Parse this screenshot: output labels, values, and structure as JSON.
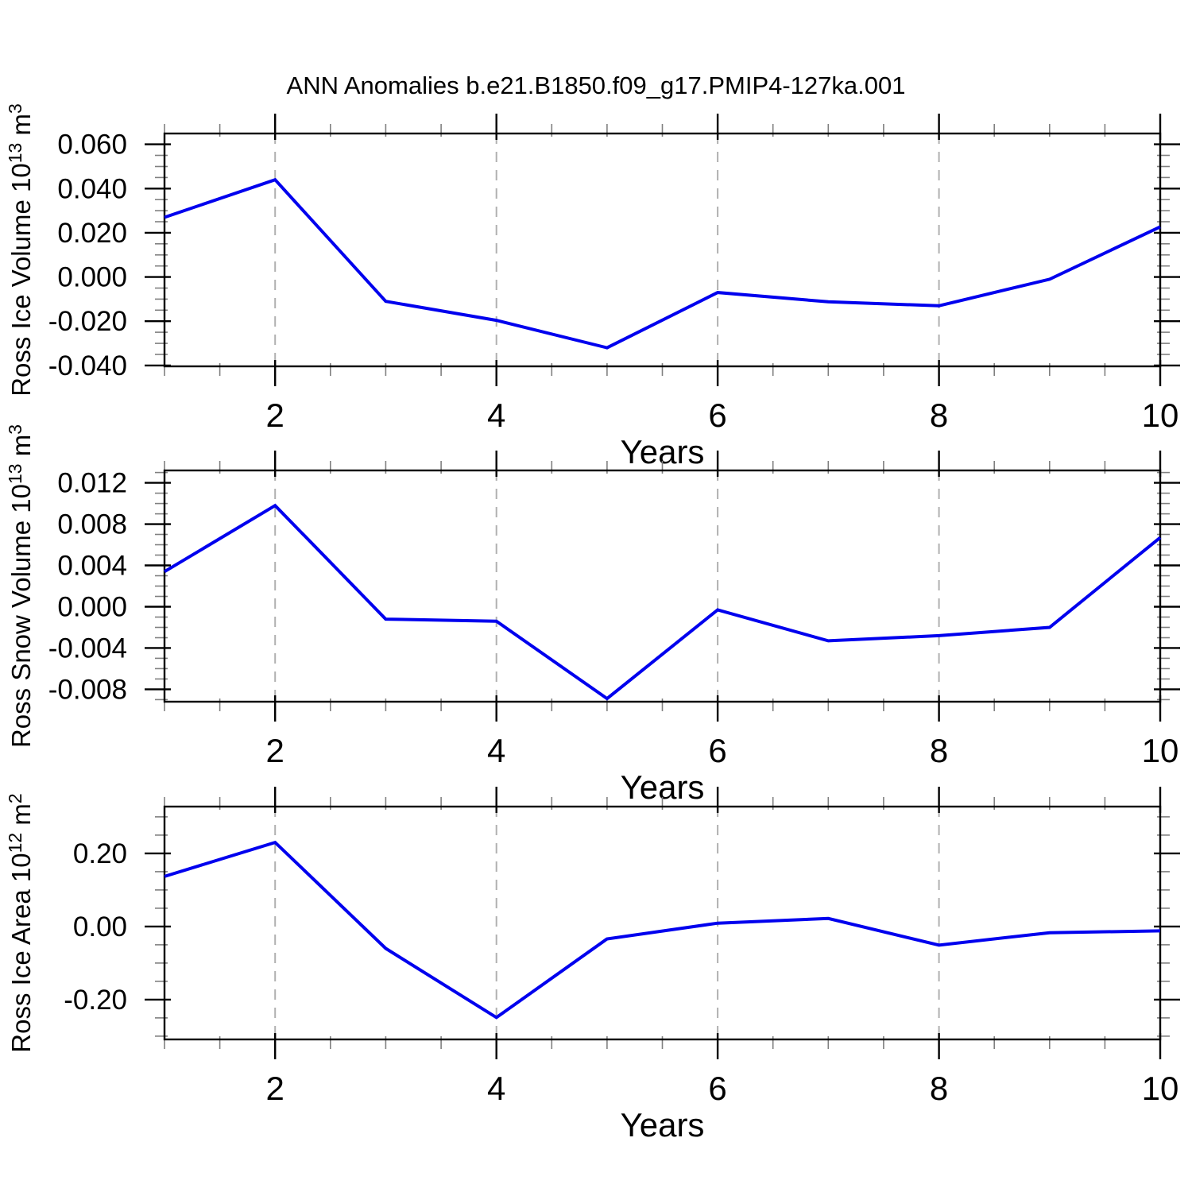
{
  "title": "ANN Anomalies b.e21.B1850.f09_g17.PMIP4-127ka.001",
  "line_color": "#0000ee",
  "colors": {
    "grid": "#b0b0b0",
    "axis": "#000000",
    "minor_tick": "#808080",
    "background": "#ffffff"
  },
  "chart_data": [
    {
      "type": "line",
      "id": "ross-ice-volume",
      "ylabel": "Ross Ice Volume 10^13 m^3",
      "ylabel_parts": [
        {
          "t": "Ross Ice Volume 10"
        },
        {
          "t": "13",
          "sup": true
        },
        {
          "t": " m"
        },
        {
          "t": "3",
          "sup": true
        }
      ],
      "xlabel": "Years",
      "x": [
        1,
        2,
        3,
        4,
        5,
        6,
        7,
        8,
        9,
        10
      ],
      "values": [
        0.027,
        0.044,
        -0.011,
        -0.0196,
        -0.032,
        -0.007,
        -0.0112,
        -0.013,
        -0.001,
        0.0227
      ],
      "xlim": [
        1,
        10
      ],
      "ylim": [
        -0.0404,
        0.0649
      ],
      "xticks": [
        {
          "v": 2,
          "label": "2"
        },
        {
          "v": 4,
          "label": "4"
        },
        {
          "v": 6,
          "label": "6"
        },
        {
          "v": 8,
          "label": "8"
        },
        {
          "v": 10,
          "label": "10"
        }
      ],
      "x_minor_step": 0.5,
      "grid_x": [
        2,
        4,
        6,
        8
      ],
      "yticks": [
        {
          "v": 0.06,
          "label": "0.060"
        },
        {
          "v": 0.04,
          "label": "0.040"
        },
        {
          "v": 0.02,
          "label": "0.020"
        },
        {
          "v": 0,
          "label": "0.000"
        },
        {
          "v": -0.02,
          "label": "-0.020"
        },
        {
          "v": -0.04,
          "label": "-0.040"
        }
      ],
      "y_minor_step": 0.005
    },
    {
      "type": "line",
      "id": "ross-snow-volume",
      "ylabel": "Ross Snow Volume 10^13 m^3",
      "ylabel_parts": [
        {
          "t": "Ross Snow Volume 10"
        },
        {
          "t": "13",
          "sup": true
        },
        {
          "t": " m"
        },
        {
          "t": "3",
          "sup": true
        }
      ],
      "xlabel": "Years",
      "x": [
        1,
        2,
        3,
        4,
        5,
        6,
        7,
        8,
        9,
        10
      ],
      "values": [
        0.0034,
        0.0098,
        -0.0012,
        -0.0014,
        -0.0089,
        -0.0003,
        -0.0033,
        -0.0028,
        -0.002,
        0.0067
      ],
      "xlim": [
        1,
        10
      ],
      "ylim": [
        -0.0092,
        0.0132
      ],
      "xticks": [
        {
          "v": 2,
          "label": "2"
        },
        {
          "v": 4,
          "label": "4"
        },
        {
          "v": 6,
          "label": "6"
        },
        {
          "v": 8,
          "label": "8"
        },
        {
          "v": 10,
          "label": "10"
        }
      ],
      "x_minor_step": 0.5,
      "grid_x": [
        2,
        4,
        6,
        8
      ],
      "yticks": [
        {
          "v": 0.012,
          "label": "0.012"
        },
        {
          "v": 0.008,
          "label": "0.008"
        },
        {
          "v": 0.004,
          "label": "0.004"
        },
        {
          "v": 0,
          "label": "0.000"
        },
        {
          "v": -0.004,
          "label": "-0.004"
        },
        {
          "v": -0.008,
          "label": "-0.008"
        }
      ],
      "y_minor_step": 0.001
    },
    {
      "type": "line",
      "id": "ross-ice-area",
      "ylabel": "Ross Ice Area 10^12 m^2",
      "ylabel_parts": [
        {
          "t": "Ross Ice Area 10"
        },
        {
          "t": "12",
          "sup": true
        },
        {
          "t": " m"
        },
        {
          "t": "2",
          "sup": true
        }
      ],
      "xlabel": "Years",
      "x": [
        1,
        2,
        3,
        4,
        5,
        6,
        7,
        8,
        9,
        10
      ],
      "values": [
        0.137,
        0.23,
        -0.06,
        -0.249,
        -0.034,
        0.009,
        0.022,
        -0.051,
        -0.017,
        -0.012
      ],
      "xlim": [
        1,
        10
      ],
      "ylim": [
        -0.309,
        0.328
      ],
      "xticks": [
        {
          "v": 2,
          "label": "2"
        },
        {
          "v": 4,
          "label": "4"
        },
        {
          "v": 6,
          "label": "6"
        },
        {
          "v": 8,
          "label": "8"
        },
        {
          "v": 10,
          "label": "10"
        }
      ],
      "x_minor_step": 0.5,
      "grid_x": [
        2,
        4,
        6,
        8
      ],
      "yticks": [
        {
          "v": 0.2,
          "label": "0.20"
        },
        {
          "v": 0,
          "label": "0.00"
        },
        {
          "v": -0.2,
          "label": "-0.20"
        }
      ],
      "y_minor_step": 0.05
    }
  ]
}
